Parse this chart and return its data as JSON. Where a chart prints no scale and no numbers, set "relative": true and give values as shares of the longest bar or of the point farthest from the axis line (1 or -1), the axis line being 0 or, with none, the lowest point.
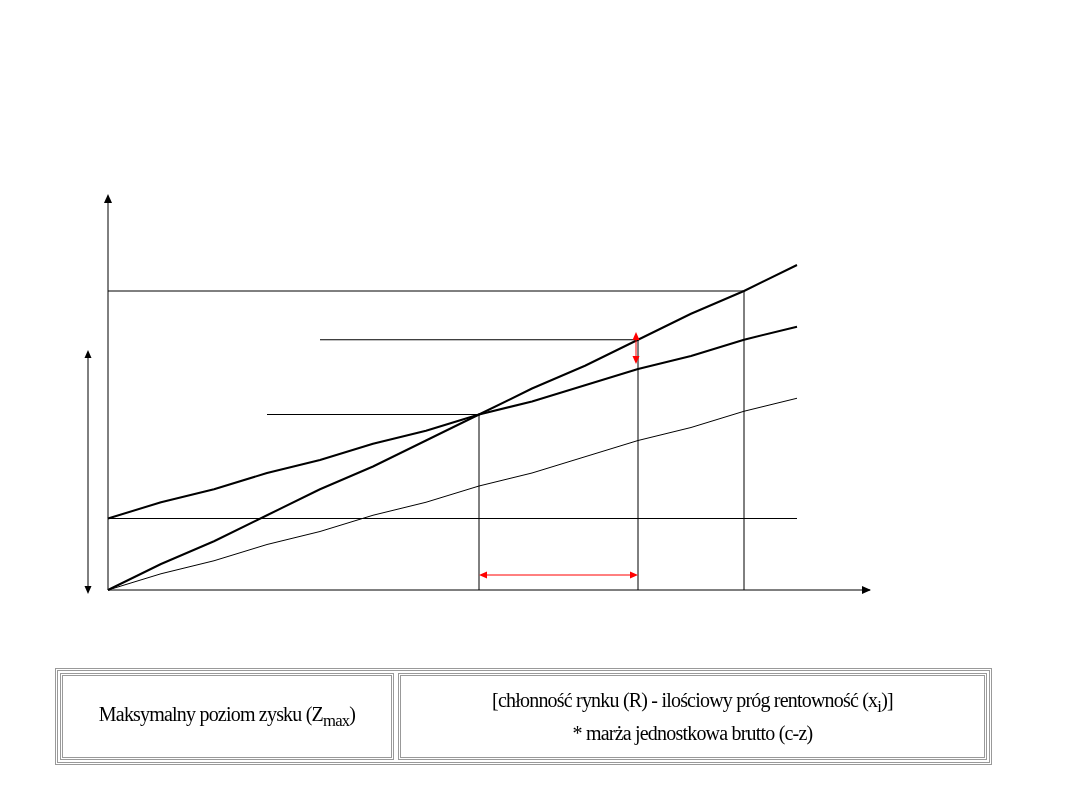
{
  "chart_data": {
    "type": "line",
    "relative": true,
    "marker": "none",
    "line_style": "solid",
    "legend": false,
    "categories": [
      null,
      null,
      null,
      null,
      null,
      null,
      null,
      null,
      null,
      null,
      null,
      null,
      null,
      null
    ],
    "series": [
      {
        "color": "#000000",
        "values": [
          0,
          0.08,
          0.15,
          0.23,
          0.31,
          0.38,
          0.46,
          0.54,
          0.62,
          0.69,
          0.77,
          0.85,
          0.92,
          1
        ]
      },
      {
        "color": "#000000",
        "values": [
          0.22,
          0.27,
          0.31,
          0.36,
          0.4,
          0.45,
          0.49,
          0.54,
          0.58,
          0.63,
          0.68,
          0.72,
          0.77,
          0.81
        ]
      },
      {
        "color": "#000000",
        "values": [
          0,
          0.05,
          0.09,
          0.14,
          0.18,
          0.23,
          0.27,
          0.32,
          0.36,
          0.41,
          0.46,
          0.5,
          0.55,
          0.59
        ]
      },
      {
        "color": "#000000",
        "values": [
          0.22,
          0.22,
          0.22,
          0.22,
          0.22,
          0.22,
          0.22,
          0.22,
          0.22,
          0.22,
          0.22,
          0.22,
          0.22,
          0.22
        ]
      },
      {
        "color": "#000000",
        "values": [
          0.92,
          0.92,
          0.92,
          0.92,
          0.92,
          0.92,
          0.92,
          0.92,
          0.92,
          0.92,
          0.92,
          0.92,
          0.92,
          null
        ]
      },
      {
        "color": "#000000",
        "values": [
          null,
          null,
          null,
          0.54,
          0.54,
          0.54,
          0.54,
          0.54,
          null,
          null,
          null,
          null,
          null,
          null
        ]
      },
      {
        "color": "#000000",
        "values": [
          null,
          null,
          null,
          null,
          0.77,
          0.77,
          0.77,
          0.77,
          0.77,
          0.77,
          0.77,
          null,
          null,
          null
        ]
      }
    ],
    "annotations": [
      "Maksymalny poziom zysku (Z$_{max}$)",
      "[chłonność rynku (R) - ilościowy próg rentowność (x$_{i}$)]",
      "* marża jednostkowa brutto (c-z)"
    ]
  }
}
